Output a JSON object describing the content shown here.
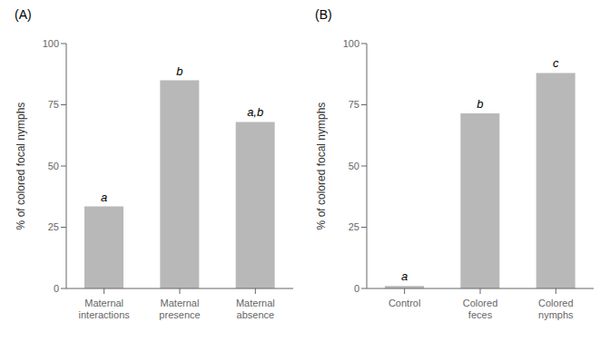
{
  "chart_data": [
    {
      "type": "bar",
      "title": "(A)",
      "categories": [
        "Maternal\ninteractions",
        "Maternal\npresence",
        "Maternal\nabsence"
      ],
      "values": [
        33.5,
        85.0,
        68.0
      ],
      "annotations": [
        "a",
        "b",
        "a,b"
      ],
      "y_label": "% of colored focal nymphs",
      "color": "#b8b8b8",
      "ylim": [
        0,
        100
      ],
      "yticks": [
        0,
        25,
        50,
        75,
        100
      ]
    },
    {
      "type": "bar",
      "title": "(B)",
      "categories": [
        "Control",
        "Colored\nfeces",
        "Colored\nnymphs"
      ],
      "values": [
        1.0,
        71.5,
        88.0
      ],
      "annotations": [
        "a",
        "b",
        "c"
      ],
      "y_label": "% of colored focal nymphs",
      "color": "#b8b8b8",
      "ylim": [
        0,
        100
      ],
      "yticks": [
        0,
        25,
        50,
        75,
        100
      ]
    }
  ]
}
